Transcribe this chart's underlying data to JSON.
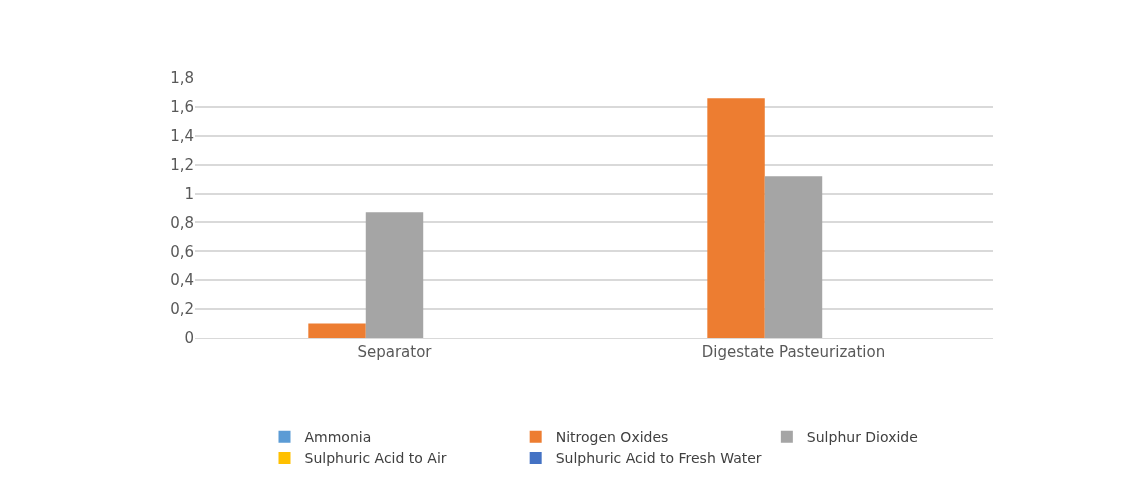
{
  "chart_data": {
    "type": "bar",
    "categories": [
      "Separator",
      "Digestate Pasteurization"
    ],
    "series": [
      {
        "name": "Ammonia",
        "color": "#5b9bd5",
        "values": [
          0,
          0
        ]
      },
      {
        "name": "Nitrogen Oxides",
        "color": "#ed7d31",
        "values": [
          0.1,
          1.66
        ]
      },
      {
        "name": "Sulphur Dioxide",
        "color": "#a5a5a5",
        "values": [
          0.87,
          1.12
        ]
      },
      {
        "name": "Sulphuric Acid to Air",
        "color": "#ffc000",
        "values": [
          0,
          0
        ]
      },
      {
        "name": "Sulphuric Acid to Fresh Water",
        "color": "#4472c4",
        "values": [
          0,
          0
        ]
      }
    ],
    "ylim": [
      0,
      1.8
    ],
    "yticks": [
      0,
      {
        "value": 0.2,
        "label": "0,2"
      },
      {
        "value": 0.4,
        "label": "0,4"
      },
      {
        "value": 0.6,
        "label": "0,6"
      },
      {
        "value": 0.8,
        "label": "0,8"
      },
      1,
      {
        "value": 1.2,
        "label": "1,2"
      },
      {
        "value": 1.4,
        "label": "1,4"
      },
      {
        "value": 1.6,
        "label": "1,6"
      },
      {
        "value": 1.8,
        "label": "1,8"
      }
    ],
    "grid": "y",
    "legend": "bottom"
  }
}
